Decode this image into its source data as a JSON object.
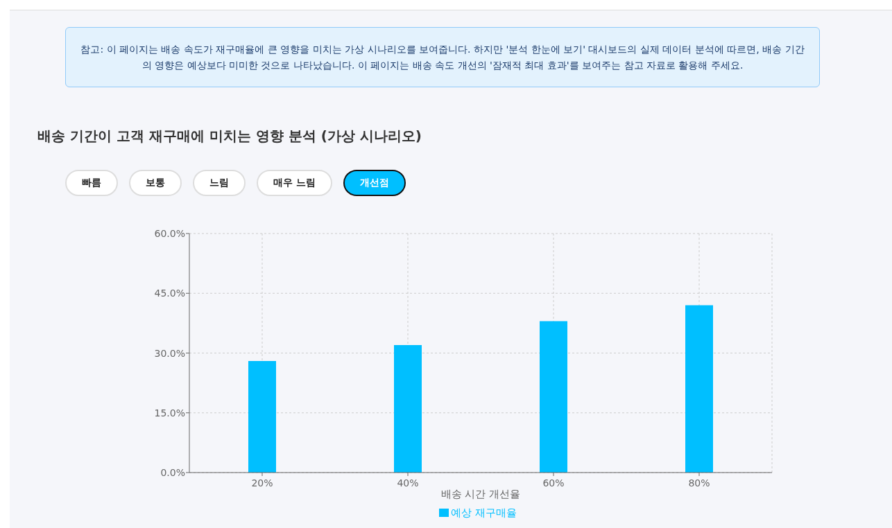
{
  "chart_data": {
    "type": "bar",
    "title": "배송 기간이 고객 재구매에 미치는 영향 분석 (가상 시나리오)",
    "annotations": [
      "참고: 이 페이지는 배송 속도가 재구매율에 큰 영향을 미치는 가상 시나리오를 보여줍니다. 하지만 '분석 한눈에 보기' 대시보드의 실제 데이터 분석에 따르면, 배송 기간의 영향은 예상보다 미미한 것으로 나타났습니다. 이 페이지는 배송 속도 개선의 '잠재적 최대 효과'를 보여주는 참고 자료로 활용해 주세요.",
      "빠름",
      "보통",
      "느림",
      "매우 느림",
      "개선점"
    ],
    "xlabel": "배송 시간 개선율",
    "categories": [
      "20%",
      "40%",
      "60%",
      "80%"
    ],
    "series": [
      {
        "name": "예상 재구매율",
        "color": "#00bfff",
        "values": [
          28,
          32,
          38,
          42
        ]
      }
    ],
    "ylim": [
      0,
      60
    ],
    "yticks": [
      {
        "value": 0,
        "label": "0.0%"
      },
      {
        "value": 15,
        "label": "15.0%"
      },
      {
        "value": 30,
        "label": "30.0%"
      },
      {
        "value": 45,
        "label": "45.0%"
      },
      {
        "value": 60,
        "label": "60.0%"
      }
    ],
    "grid": true,
    "legend": "bottom"
  }
}
